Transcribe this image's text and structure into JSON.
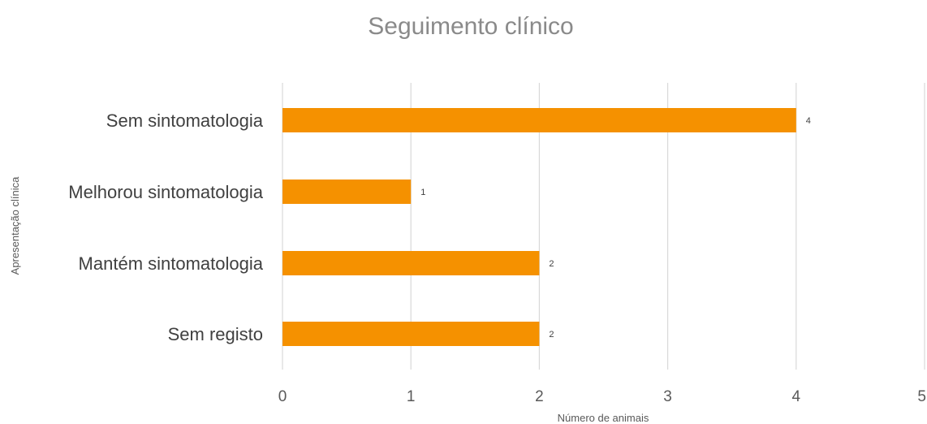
{
  "chart_data": {
    "type": "bar",
    "orientation": "horizontal",
    "title": "Seguimento clínico",
    "xlabel": "Número de animais",
    "ylabel": "Apresentação clínica",
    "categories": [
      "Sem sintomatologia",
      "Melhorou sintomatologia",
      "Mantém sintomatologia",
      "Sem registo"
    ],
    "values": [
      4,
      1,
      2,
      2
    ],
    "xlim": [
      0,
      5
    ],
    "xticks": [
      "0",
      "1",
      "2",
      "3",
      "4",
      "5"
    ],
    "grid": true,
    "data_labels": true,
    "bar_color": "#F59100"
  }
}
